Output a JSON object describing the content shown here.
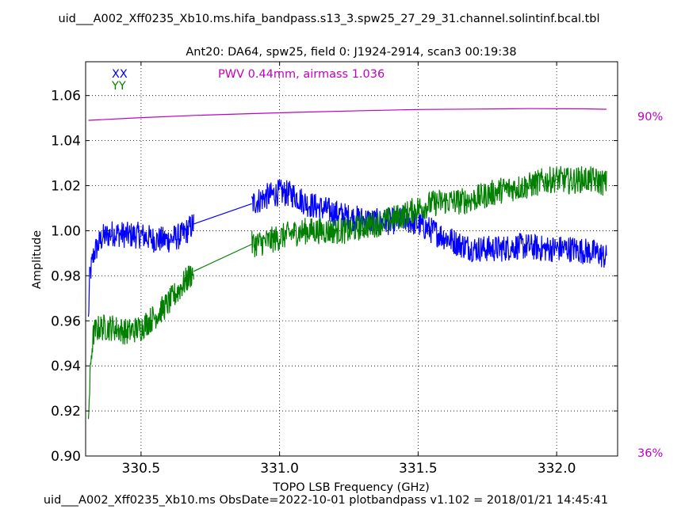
{
  "header": {
    "title": "uid___A002_Xff0235_Xb10.ms.hifa_bandpass.s13_3.spw25_27_29_31.channel.solintinf.bcal.tbl",
    "subtitle": "Ant20: DA64,  spw25,  field 0: J1924-2914,  scan3  00:19:38"
  },
  "footer": {
    "text": "uid___A002_Xff0235_Xb10.ms  ObsDate=2022-10-01   plotbandpass v1.102 = 2018/01/21 14:45:41"
  },
  "colors": {
    "xx": "#0000ff",
    "yy": "#007f00",
    "pwv": "#bf00bf"
  },
  "chart_data": {
    "type": "line",
    "xlabel": "TOPO LSB Frequency (GHz)",
    "ylabel": "Amplitude",
    "xlim": [
      330.3,
      332.22
    ],
    "ylim": [
      0.9,
      1.075
    ],
    "xticks": [
      330.5,
      331.0,
      331.5,
      332.0
    ],
    "xtick_labels": [
      "330.5",
      "331.0",
      "331.5",
      "332.0"
    ],
    "yticks": [
      0.9,
      0.92,
      0.94,
      0.96,
      0.98,
      1.0,
      1.02,
      1.04,
      1.06
    ],
    "ytick_labels": [
      "0.90",
      "0.92",
      "0.94",
      "0.96",
      "0.98",
      "1.00",
      "1.02",
      "1.04",
      "1.06"
    ],
    "grid": true,
    "legend_position": "top-left",
    "annotation": "PWV 0.44mm, airmass 1.036",
    "right_axis_labels": {
      "top": "90%",
      "bottom": "36%"
    },
    "series": [
      {
        "name": "XX",
        "segments": [
          {
            "x": [
              330.31,
              330.315,
              330.33,
              330.36,
              330.4,
              330.45,
              330.5,
              330.55,
              330.6,
              330.65,
              330.69
            ],
            "y": [
              0.96,
              0.98,
              0.99,
              0.997,
              0.999,
              0.998,
              0.998,
              0.996,
              0.996,
              0.998,
              1.003
            ]
          },
          {
            "x": [
              330.9,
              330.95,
              331.0,
              331.05,
              331.1,
              331.15,
              331.2,
              331.25,
              331.3,
              331.35,
              331.4,
              331.45,
              331.5,
              331.55,
              331.6,
              331.65,
              331.7,
              331.75,
              331.8,
              331.85,
              331.9,
              331.95,
              332.0,
              332.05,
              332.1,
              332.15,
              332.18
            ],
            "y": [
              1.012,
              1.015,
              1.017,
              1.016,
              1.012,
              1.01,
              1.008,
              1.006,
              1.005,
              1.004,
              1.004,
              1.005,
              1.003,
              1.0,
              0.997,
              0.994,
              0.992,
              0.992,
              0.992,
              0.993,
              0.993,
              0.992,
              0.992,
              0.992,
              0.991,
              0.99,
              0.988
            ]
          }
        ]
      },
      {
        "name": "YY",
        "segments": [
          {
            "x": [
              330.31,
              330.315,
              330.32,
              330.33,
              330.35,
              330.4,
              330.45,
              330.5,
              330.55,
              330.6,
              330.65,
              330.69
            ],
            "y": [
              0.918,
              0.93,
              0.945,
              0.955,
              0.957,
              0.957,
              0.955,
              0.957,
              0.962,
              0.968,
              0.976,
              0.982
            ]
          },
          {
            "x": [
              330.9,
              330.95,
              331.0,
              331.05,
              331.1,
              331.15,
              331.2,
              331.25,
              331.3,
              331.35,
              331.4,
              331.45,
              331.5,
              331.55,
              331.6,
              331.65,
              331.7,
              331.75,
              331.8,
              331.85,
              331.9,
              331.95,
              332.0,
              332.05,
              332.1,
              332.15,
              332.18
            ],
            "y": [
              0.994,
              0.995,
              0.997,
              0.999,
              1.0,
              1.0,
              1.0,
              1.0,
              1.002,
              1.003,
              1.005,
              1.007,
              1.01,
              1.012,
              1.013,
              1.013,
              1.014,
              1.016,
              1.018,
              1.019,
              1.02,
              1.022,
              1.023,
              1.022,
              1.023,
              1.022,
              1.021
            ]
          }
        ]
      },
      {
        "name": "PWV",
        "segments": [
          {
            "x": [
              330.31,
              330.5,
              330.7,
              330.9,
              331.1,
              331.3,
              331.5,
              331.7,
              331.9,
              332.1,
              332.18
            ],
            "y": [
              1.049,
              1.0502,
              1.0512,
              1.052,
              1.0527,
              1.0533,
              1.0538,
              1.054,
              1.0542,
              1.0541,
              1.0539
            ]
          }
        ]
      }
    ]
  }
}
